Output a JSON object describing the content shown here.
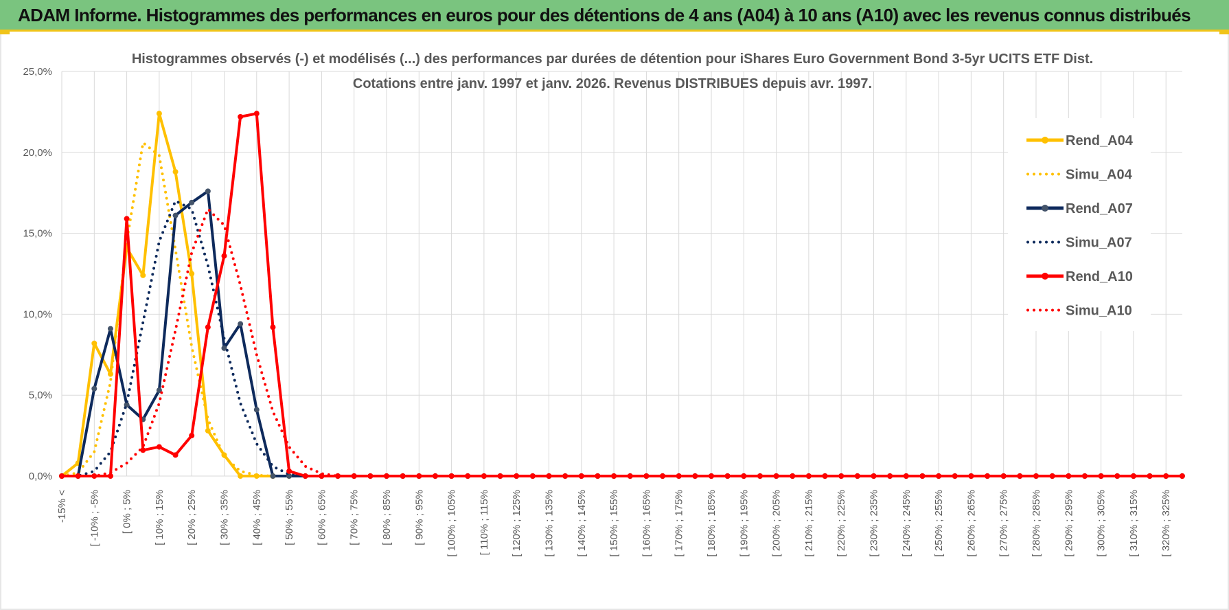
{
  "banner": {
    "title": "ADAM Informe. Histogrammes des performances en euros pour des détentions de 4 ans (A04) à 10 ans (A10) avec les revenus connus distribués"
  },
  "colors": {
    "banner_bg": "#7ac47f",
    "accent": "#f0c419",
    "A04": "#ffc000",
    "A07": "#0e2a5c",
    "A07_marker": "#44546a",
    "A10": "#ff0000",
    "grid": "#d9d9d9"
  },
  "chart_data": {
    "type": "line",
    "title": "Histogrammes observés (-) et modélisés (...) des performances par durées de détention pour iShares Euro Government Bond 3-5yr UCITS ETF Dist.",
    "subtitle": "Cotations entre janv. 1997 et janv. 2026. Revenus DISTRIBUES depuis avr. 1997.",
    "xlabel": "",
    "ylabel": "",
    "ylim": [
      0,
      0.25
    ],
    "yticks": [
      "0,0%",
      "5,0%",
      "10,0%",
      "15,0%",
      "20,0%",
      "25,0%"
    ],
    "grid": true,
    "legend_position": "right",
    "x_labels_shown": [
      "-15% <",
      "[ -10% ; -5%",
      "[ 0% ; 5%",
      "[ 10% ; 15%",
      "[ 20% ; 25%",
      "[ 30% ; 35%",
      "[ 40% ; 45%",
      "[ 50% ; 55%",
      "[ 60% ; 65%",
      "[ 70% ; 75%",
      "[ 80% ; 85%",
      "[ 90% ; 95%",
      "[ 100% ; 105%",
      "[ 110% ; 115%",
      "[ 120% ; 125%",
      "[ 130% ; 135%",
      "[ 140% ; 145%",
      "[ 150% ; 155%",
      "[ 160% ; 165%",
      "[ 170% ; 175%",
      "[ 180% ; 185%",
      "[ 190% ; 195%",
      "[ 200% ; 205%",
      "[ 210% ; 215%",
      "[ 220% ; 225%",
      "[ 230% ; 235%",
      "[ 240% ; 245%",
      "[ 250% ; 255%",
      "[ 260% ; 265%",
      "[ 270% ; 275%",
      "[ 280% ; 285%",
      "[ 290% ; 295%",
      "[ 300% ; 305%",
      "[ 310% ; 315%",
      "[ 320% ; 325%"
    ],
    "series": [
      {
        "name": "Rend_A04",
        "style": "solid",
        "color": "#ffc000",
        "values": [
          0,
          0.008,
          0.082,
          0.063,
          0.141,
          0.124,
          0.224,
          0.188,
          0.125,
          0.028,
          0.013,
          0,
          0,
          0
        ]
      },
      {
        "name": "Simu_A04",
        "style": "dotted",
        "color": "#ffc000",
        "values": [
          0,
          0.002,
          0.015,
          0.058,
          0.145,
          0.206,
          0.198,
          0.14,
          0.08,
          0.035,
          0.012,
          0.003,
          0.0005,
          0
        ]
      },
      {
        "name": "Rend_A07",
        "style": "solid",
        "color": "#0e2a5c",
        "values": [
          0,
          0,
          0.054,
          0.091,
          0.044,
          0.035,
          0.053,
          0.161,
          0.169,
          0.176,
          0.079,
          0.094,
          0.041,
          0,
          0
        ]
      },
      {
        "name": "Simu_A07",
        "style": "dotted",
        "color": "#0e2a5c",
        "values": [
          0,
          0,
          0.003,
          0.015,
          0.045,
          0.095,
          0.145,
          0.17,
          0.165,
          0.13,
          0.085,
          0.045,
          0.02,
          0.006,
          0.001,
          0
        ]
      },
      {
        "name": "Rend_A10",
        "style": "solid",
        "color": "#ff0000",
        "values": [
          0,
          0,
          0,
          0,
          0.159,
          0.016,
          0.018,
          0.013,
          0.025,
          0.092,
          0.136,
          0.222,
          0.224,
          0.092,
          0.003,
          0
        ]
      },
      {
        "name": "Simu_A10",
        "style": "dotted",
        "color": "#ff0000",
        "values": [
          0,
          0,
          0,
          0.002,
          0.008,
          0.018,
          0.045,
          0.09,
          0.138,
          0.165,
          0.155,
          0.118,
          0.075,
          0.04,
          0.018,
          0.006,
          0.0015,
          0
        ]
      }
    ],
    "n_categories": 70
  }
}
